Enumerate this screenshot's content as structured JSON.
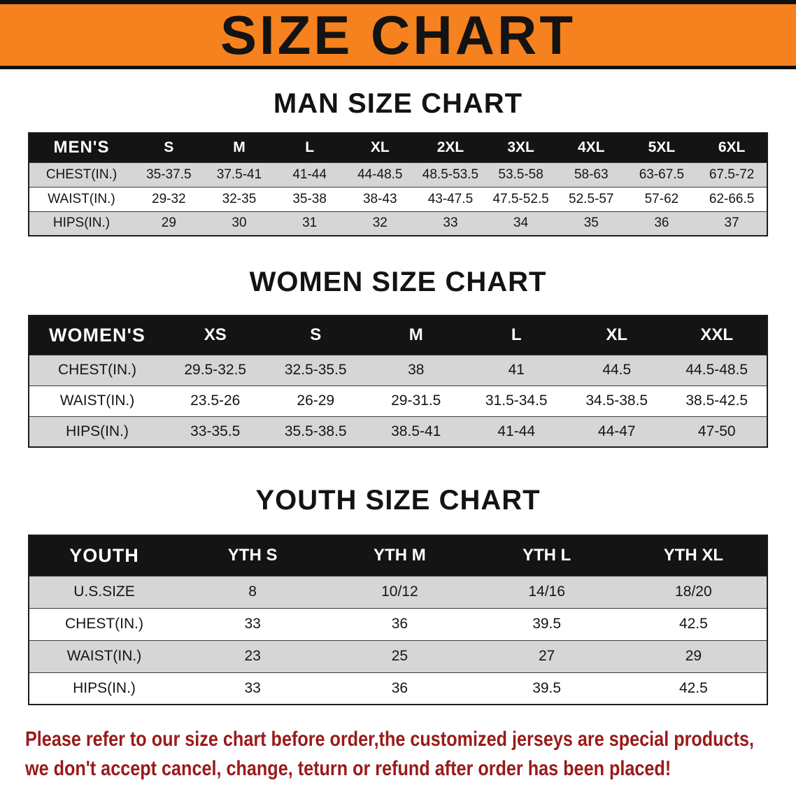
{
  "banner": {
    "title": "SIZE CHART"
  },
  "colors": {
    "banner_bg": "#f5821e",
    "table_header_bg": "#141414",
    "row_alt_bg": "#d6d6d6",
    "footer_text": "#9a1a1a"
  },
  "sections": [
    {
      "heading": "MAN SIZE CHART",
      "table": {
        "header_label": "MEN'S",
        "columns": [
          "S",
          "M",
          "L",
          "XL",
          "2XL",
          "3XL",
          "4XL",
          "5XL",
          "6XL"
        ],
        "rows": [
          {
            "label": "CHEST(IN.)",
            "values": [
              "35-37.5",
              "37.5-41",
              "41-44",
              "44-48.5",
              "48.5-53.5",
              "53.5-58",
              "58-63",
              "63-67.5",
              "67.5-72"
            ]
          },
          {
            "label": "WAIST(IN.)",
            "values": [
              "29-32",
              "32-35",
              "35-38",
              "38-43",
              "43-47.5",
              "47.5-52.5",
              "52.5-57",
              "57-62",
              "62-66.5"
            ]
          },
          {
            "label": "HIPS(IN.)",
            "values": [
              "29",
              "30",
              "31",
              "32",
              "33",
              "34",
              "35",
              "36",
              "37"
            ]
          }
        ]
      }
    },
    {
      "heading": "WOMEN SIZE CHART",
      "table": {
        "header_label": "WOMEN'S",
        "columns": [
          "XS",
          "S",
          "M",
          "L",
          "XL",
          "XXL"
        ],
        "rows": [
          {
            "label": "CHEST(IN.)",
            "values": [
              "29.5-32.5",
              "32.5-35.5",
              "38",
              "41",
              "44.5",
              "44.5-48.5"
            ]
          },
          {
            "label": "WAIST(IN.)",
            "values": [
              "23.5-26",
              "26-29",
              "29-31.5",
              "31.5-34.5",
              "34.5-38.5",
              "38.5-42.5"
            ]
          },
          {
            "label": "HIPS(IN.)",
            "values": [
              "33-35.5",
              "35.5-38.5",
              "38.5-41",
              "41-44",
              "44-47",
              "47-50"
            ]
          }
        ]
      }
    },
    {
      "heading": "YOUTH SIZE CHART",
      "table": {
        "header_label": "YOUTH",
        "columns": [
          "YTH S",
          "YTH M",
          "YTH L",
          "YTH XL"
        ],
        "rows": [
          {
            "label": "U.S.SIZE",
            "values": [
              "8",
              "10/12",
              "14/16",
              "18/20"
            ]
          },
          {
            "label": "CHEST(IN.)",
            "values": [
              "33",
              "36",
              "39.5",
              "42.5"
            ]
          },
          {
            "label": "WAIST(IN.)",
            "values": [
              "23",
              "25",
              "27",
              "29"
            ]
          },
          {
            "label": "HIPS(IN.)",
            "values": [
              "33",
              "36",
              "39.5",
              "42.5"
            ]
          }
        ]
      }
    }
  ],
  "footer": {
    "line1": "Please refer to our size chart before order,the customized jerseys are special products,",
    "line2": "we don't accept cancel, change, teturn or refund after order has been placed!"
  }
}
